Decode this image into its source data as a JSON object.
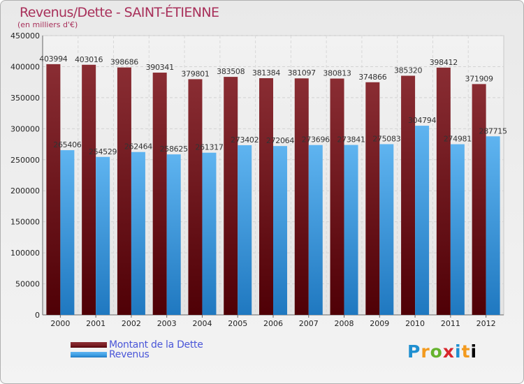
{
  "chart_data": {
    "type": "bar",
    "title": "Revenus/Dette - SAINT-ÉTIENNE",
    "subtitle": "(en milliers d'€)",
    "categories": [
      "2000",
      "2001",
      "2002",
      "2003",
      "2004",
      "2005",
      "2006",
      "2007",
      "2008",
      "2009",
      "2010",
      "2011",
      "2012"
    ],
    "series": [
      {
        "name": "Montant de la Dette",
        "color": "#7a1f24",
        "values": [
          403994,
          403016,
          398686,
          390341,
          379801,
          383508,
          381384,
          381097,
          380813,
          374866,
          385320,
          398412,
          371909
        ]
      },
      {
        "name": "Revenus",
        "color": "#3d9ee3",
        "values": [
          265406,
          254529,
          262464,
          258625,
          261317,
          273402,
          272064,
          273696,
          273841,
          275083,
          304794,
          274981,
          287715
        ]
      }
    ],
    "ylim": [
      0,
      450000
    ],
    "yticks": [
      0,
      50000,
      100000,
      150000,
      200000,
      250000,
      300000,
      350000,
      400000,
      450000
    ],
    "grid": true,
    "legend": "bottom-left"
  },
  "brand": {
    "name": "Proxiti",
    "letters": [
      "P",
      "r",
      "o",
      "x",
      "i",
      "t",
      "i"
    ]
  }
}
